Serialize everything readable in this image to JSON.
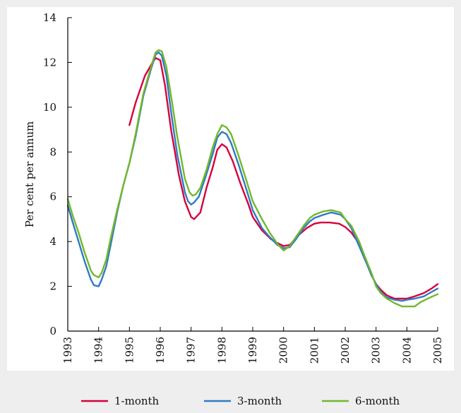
{
  "chart_data": {
    "type": "line",
    "title": "",
    "xlabel": "",
    "ylabel": "Per cent per annum",
    "xlim": [
      1993,
      2005
    ],
    "ylim": [
      0,
      14
    ],
    "x_ticks": [
      "1993",
      "1994",
      "1995",
      "1996",
      "1997",
      "1998",
      "1999",
      "2000",
      "2001",
      "2002",
      "2003",
      "2004",
      "2005"
    ],
    "y_ticks": [
      "0",
      "2",
      "4",
      "6",
      "8",
      "10",
      "12",
      "14"
    ],
    "grid": false,
    "legend_position": "bottom",
    "series": [
      {
        "name": "1-month",
        "color": "#d6003c",
        "points": [
          [
            1995.0,
            9.2
          ],
          [
            1995.2,
            10.2
          ],
          [
            1995.5,
            11.4
          ],
          [
            1995.75,
            12.0
          ],
          [
            1995.85,
            12.2
          ],
          [
            1996.0,
            12.1
          ],
          [
            1996.15,
            11.0
          ],
          [
            1996.35,
            9.0
          ],
          [
            1996.6,
            7.0
          ],
          [
            1996.8,
            5.8
          ],
          [
            1997.0,
            5.1
          ],
          [
            1997.1,
            5.0
          ],
          [
            1997.3,
            5.3
          ],
          [
            1997.5,
            6.4
          ],
          [
            1997.7,
            7.3
          ],
          [
            1997.85,
            8.1
          ],
          [
            1998.0,
            8.35
          ],
          [
            1998.15,
            8.2
          ],
          [
            1998.35,
            7.6
          ],
          [
            1998.6,
            6.6
          ],
          [
            1998.85,
            5.7
          ],
          [
            1999.0,
            5.1
          ],
          [
            1999.3,
            4.5
          ],
          [
            1999.6,
            4.1
          ],
          [
            1999.85,
            3.9
          ],
          [
            2000.0,
            3.8
          ],
          [
            2000.2,
            3.85
          ],
          [
            2000.5,
            4.3
          ],
          [
            2000.75,
            4.6
          ],
          [
            2001.0,
            4.8
          ],
          [
            2001.2,
            4.85
          ],
          [
            2001.5,
            4.85
          ],
          [
            2001.8,
            4.8
          ],
          [
            2002.0,
            4.65
          ],
          [
            2002.2,
            4.4
          ],
          [
            2002.45,
            3.9
          ],
          [
            2002.7,
            3.1
          ],
          [
            2002.85,
            2.5
          ],
          [
            2003.0,
            2.1
          ],
          [
            2003.15,
            1.85
          ],
          [
            2003.35,
            1.6
          ],
          [
            2003.6,
            1.45
          ],
          [
            2003.85,
            1.45
          ],
          [
            2004.0,
            1.45
          ],
          [
            2004.25,
            1.55
          ],
          [
            2004.55,
            1.7
          ],
          [
            2004.8,
            1.9
          ],
          [
            2005.0,
            2.1
          ]
        ]
      },
      {
        "name": "3-month",
        "color": "#2e7bc4",
        "points": [
          [
            1993.0,
            5.6
          ],
          [
            1993.15,
            4.9
          ],
          [
            1993.35,
            4.0
          ],
          [
            1993.55,
            3.1
          ],
          [
            1993.75,
            2.3
          ],
          [
            1993.85,
            2.05
          ],
          [
            1994.0,
            2.0
          ],
          [
            1994.1,
            2.3
          ],
          [
            1994.25,
            2.9
          ],
          [
            1994.4,
            3.9
          ],
          [
            1994.6,
            5.3
          ],
          [
            1994.8,
            6.5
          ],
          [
            1995.0,
            7.5
          ],
          [
            1995.2,
            8.7
          ],
          [
            1995.45,
            10.5
          ],
          [
            1995.7,
            11.7
          ],
          [
            1995.85,
            12.35
          ],
          [
            1995.95,
            12.45
          ],
          [
            1996.05,
            12.3
          ],
          [
            1996.2,
            11.4
          ],
          [
            1996.35,
            9.8
          ],
          [
            1996.55,
            7.9
          ],
          [
            1996.8,
            6.2
          ],
          [
            1996.9,
            5.8
          ],
          [
            1997.0,
            5.65
          ],
          [
            1997.1,
            5.75
          ],
          [
            1997.25,
            6.0
          ],
          [
            1997.45,
            6.8
          ],
          [
            1997.7,
            7.9
          ],
          [
            1997.85,
            8.65
          ],
          [
            1998.0,
            8.9
          ],
          [
            1998.15,
            8.8
          ],
          [
            1998.3,
            8.4
          ],
          [
            1998.55,
            7.4
          ],
          [
            1998.8,
            6.3
          ],
          [
            1999.0,
            5.4
          ],
          [
            1999.3,
            4.6
          ],
          [
            1999.55,
            4.2
          ],
          [
            1999.8,
            3.85
          ],
          [
            2000.0,
            3.7
          ],
          [
            2000.2,
            3.75
          ],
          [
            2000.4,
            4.1
          ],
          [
            2000.65,
            4.6
          ],
          [
            2000.85,
            4.9
          ],
          [
            2001.0,
            5.05
          ],
          [
            2001.3,
            5.2
          ],
          [
            2001.55,
            5.3
          ],
          [
            2001.85,
            5.2
          ],
          [
            2002.0,
            5.0
          ],
          [
            2002.2,
            4.6
          ],
          [
            2002.45,
            3.8
          ],
          [
            2002.7,
            3.0
          ],
          [
            2002.85,
            2.5
          ],
          [
            2003.0,
            2.1
          ],
          [
            2003.15,
            1.75
          ],
          [
            2003.35,
            1.5
          ],
          [
            2003.6,
            1.4
          ],
          [
            2003.85,
            1.35
          ],
          [
            2004.0,
            1.4
          ],
          [
            2004.25,
            1.45
          ],
          [
            2004.55,
            1.55
          ],
          [
            2004.8,
            1.75
          ],
          [
            2005.0,
            1.9
          ]
        ]
      },
      {
        "name": "6-month",
        "color": "#73b72b",
        "points": [
          [
            1993.0,
            5.9
          ],
          [
            1993.15,
            5.2
          ],
          [
            1993.35,
            4.4
          ],
          [
            1993.55,
            3.5
          ],
          [
            1993.75,
            2.7
          ],
          [
            1993.85,
            2.5
          ],
          [
            1994.0,
            2.4
          ],
          [
            1994.1,
            2.6
          ],
          [
            1994.25,
            3.2
          ],
          [
            1994.4,
            4.2
          ],
          [
            1994.6,
            5.4
          ],
          [
            1994.8,
            6.5
          ],
          [
            1995.0,
            7.5
          ],
          [
            1995.2,
            8.8
          ],
          [
            1995.45,
            10.6
          ],
          [
            1995.7,
            11.8
          ],
          [
            1995.85,
            12.45
          ],
          [
            1995.95,
            12.55
          ],
          [
            1996.05,
            12.5
          ],
          [
            1996.2,
            11.8
          ],
          [
            1996.35,
            10.5
          ],
          [
            1996.55,
            8.7
          ],
          [
            1996.8,
            6.8
          ],
          [
            1996.95,
            6.2
          ],
          [
            1997.05,
            6.05
          ],
          [
            1997.15,
            6.1
          ],
          [
            1997.3,
            6.4
          ],
          [
            1997.5,
            7.2
          ],
          [
            1997.7,
            8.2
          ],
          [
            1997.85,
            8.8
          ],
          [
            1998.0,
            9.2
          ],
          [
            1998.15,
            9.1
          ],
          [
            1998.3,
            8.8
          ],
          [
            1998.55,
            7.8
          ],
          [
            1998.8,
            6.7
          ],
          [
            1999.0,
            5.8
          ],
          [
            1999.3,
            5.0
          ],
          [
            1999.55,
            4.4
          ],
          [
            1999.8,
            3.9
          ],
          [
            2000.0,
            3.6
          ],
          [
            2000.2,
            3.8
          ],
          [
            2000.4,
            4.2
          ],
          [
            2000.65,
            4.7
          ],
          [
            2000.85,
            5.05
          ],
          [
            2001.0,
            5.2
          ],
          [
            2001.3,
            5.35
          ],
          [
            2001.55,
            5.4
          ],
          [
            2001.85,
            5.3
          ],
          [
            2002.0,
            5.0
          ],
          [
            2002.2,
            4.7
          ],
          [
            2002.45,
            4.0
          ],
          [
            2002.7,
            3.1
          ],
          [
            2002.85,
            2.6
          ],
          [
            2003.0,
            2.0
          ],
          [
            2003.15,
            1.7
          ],
          [
            2003.35,
            1.45
          ],
          [
            2003.6,
            1.25
          ],
          [
            2003.85,
            1.1
          ],
          [
            2004.0,
            1.1
          ],
          [
            2004.25,
            1.1
          ],
          [
            2004.45,
            1.3
          ],
          [
            2004.75,
            1.5
          ],
          [
            2005.0,
            1.65
          ]
        ]
      }
    ]
  }
}
